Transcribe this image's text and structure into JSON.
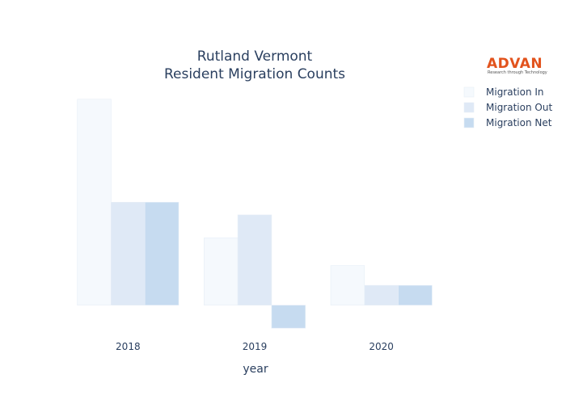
{
  "chart_data": {
    "type": "bar",
    "title": "Rutland Vermont",
    "subtitle": "Resident Migration Counts",
    "xlabel": "year",
    "ylabel": "",
    "categories": [
      "2018",
      "2019",
      "2020"
    ],
    "series": [
      {
        "name": "Migration In",
        "color": "#f5f9fd",
        "values": [
          260,
          85,
          50
        ]
      },
      {
        "name": "Migration Out",
        "color": "#dfe9f6",
        "values": [
          130,
          114,
          25
        ]
      },
      {
        "name": "Migration Net",
        "color": "#c6dbf0",
        "values": [
          130,
          -29,
          25
        ]
      }
    ],
    "ylim": [
      -35,
      270
    ],
    "legend_position": "top-right",
    "grid": false
  },
  "logo": {
    "name": "ADVAN",
    "tagline": "Research through Technology",
    "color": "#e2531d"
  }
}
